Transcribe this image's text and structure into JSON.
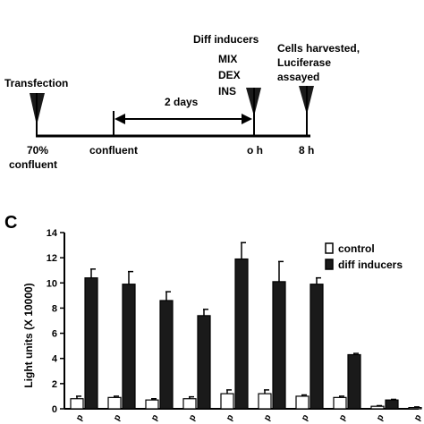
{
  "timeline": {
    "transfection": "Transfection",
    "two_days": "2 days",
    "diff_inducers_title": "Diff inducers",
    "inducers": [
      "MIX",
      "DEX",
      "INS"
    ],
    "cells_harvested": [
      "Cells harvested,",
      "Luciferase",
      "assayed"
    ],
    "seventy_percent": [
      "70%",
      "confluent"
    ],
    "confluent": "confluent",
    "o_h": "o h",
    "eight_h": "8 h"
  },
  "panel_label": "C",
  "colors": {
    "control": "#ffffff",
    "diff_inducers": "#1a1a1a",
    "axis": "#000000"
  },
  "chart_data": {
    "type": "bar",
    "ylabel": "Light units (X 10000)",
    "ylim": [
      0,
      14
    ],
    "yticks": [
      0,
      2,
      4,
      6,
      8,
      10,
      12,
      14
    ],
    "categories": [
      "",
      "",
      "",
      "",
      "",
      "",
      "",
      "",
      "",
      ""
    ],
    "category_tick_labels": [
      "p",
      "p",
      "p",
      "p",
      "p",
      "p",
      "p",
      "p",
      "p",
      "p"
    ],
    "legend": {
      "placement": "top-right",
      "entries": [
        "control",
        "diff inducers"
      ]
    },
    "series": [
      {
        "name": "control",
        "values": [
          0.8,
          0.9,
          0.7,
          0.8,
          1.2,
          1.2,
          1.0,
          0.9,
          0.2,
          0.1
        ],
        "errors": [
          0.2,
          0.1,
          0.1,
          0.15,
          0.3,
          0.3,
          0.1,
          0.1,
          0.05,
          0.05
        ]
      },
      {
        "name": "diff inducers",
        "values": [
          10.4,
          9.9,
          8.6,
          7.4,
          11.9,
          10.1,
          9.9,
          4.3,
          0.7,
          null
        ],
        "errors": [
          0.7,
          1.0,
          0.7,
          0.5,
          1.3,
          1.6,
          0.5,
          0.1,
          0.05,
          null
        ]
      }
    ]
  }
}
